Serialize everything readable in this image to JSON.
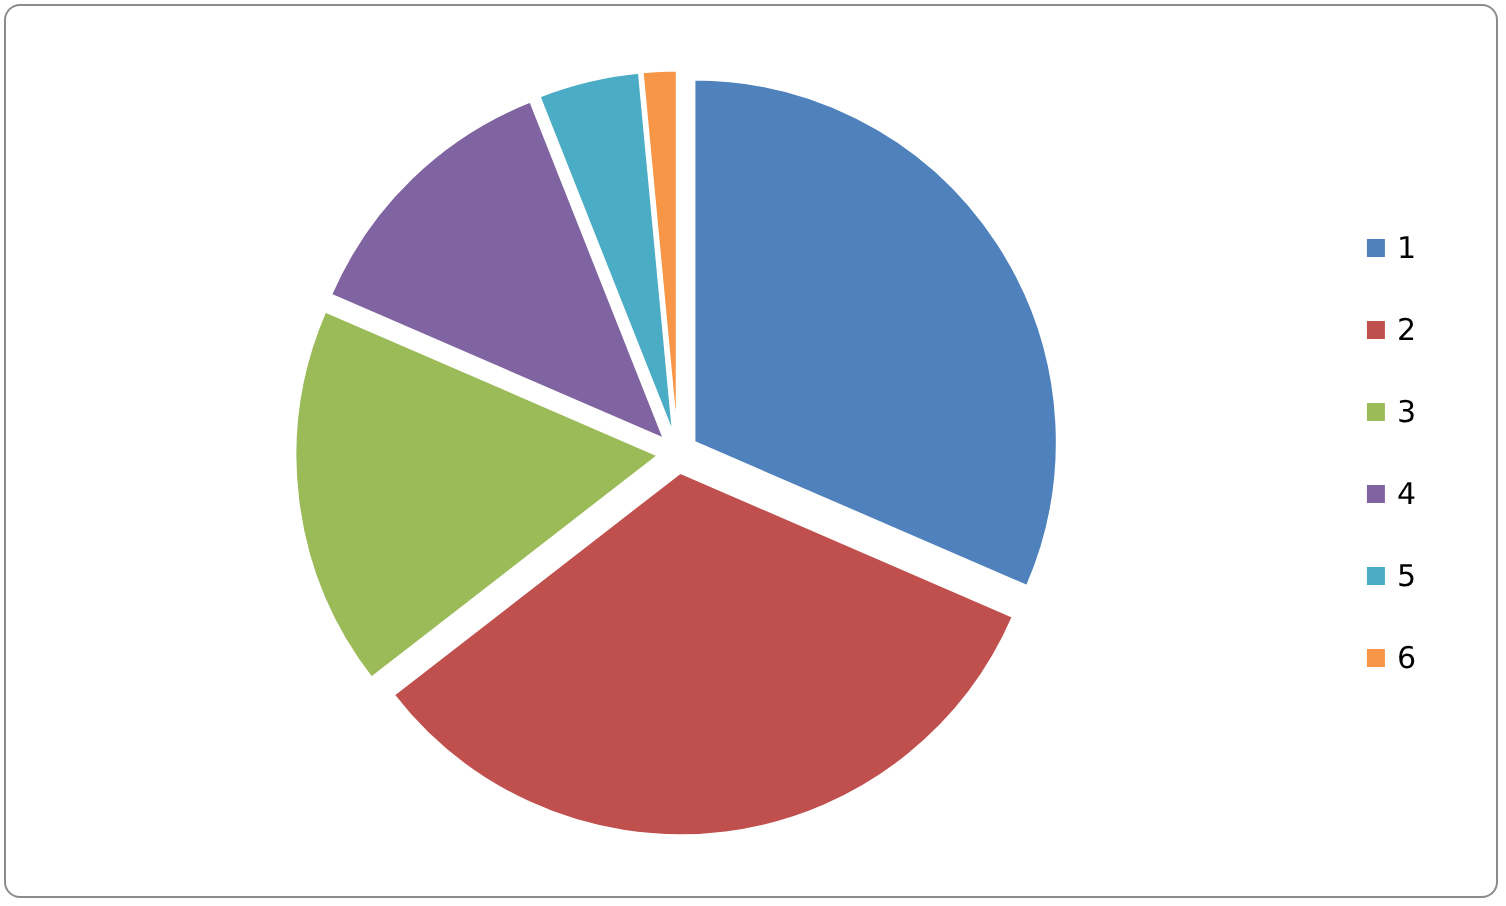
{
  "chart_data": {
    "type": "pie",
    "categories": [
      "1",
      "2",
      "3",
      "4",
      "5",
      "6"
    ],
    "values": [
      31.5,
      33,
      17,
      12.5,
      4.5,
      1.5
    ],
    "colors": [
      "#4f81bd",
      "#c0504d",
      "#9bbb59",
      "#8064a2",
      "#4bacc6",
      "#f79646"
    ],
    "legend": "right"
  }
}
